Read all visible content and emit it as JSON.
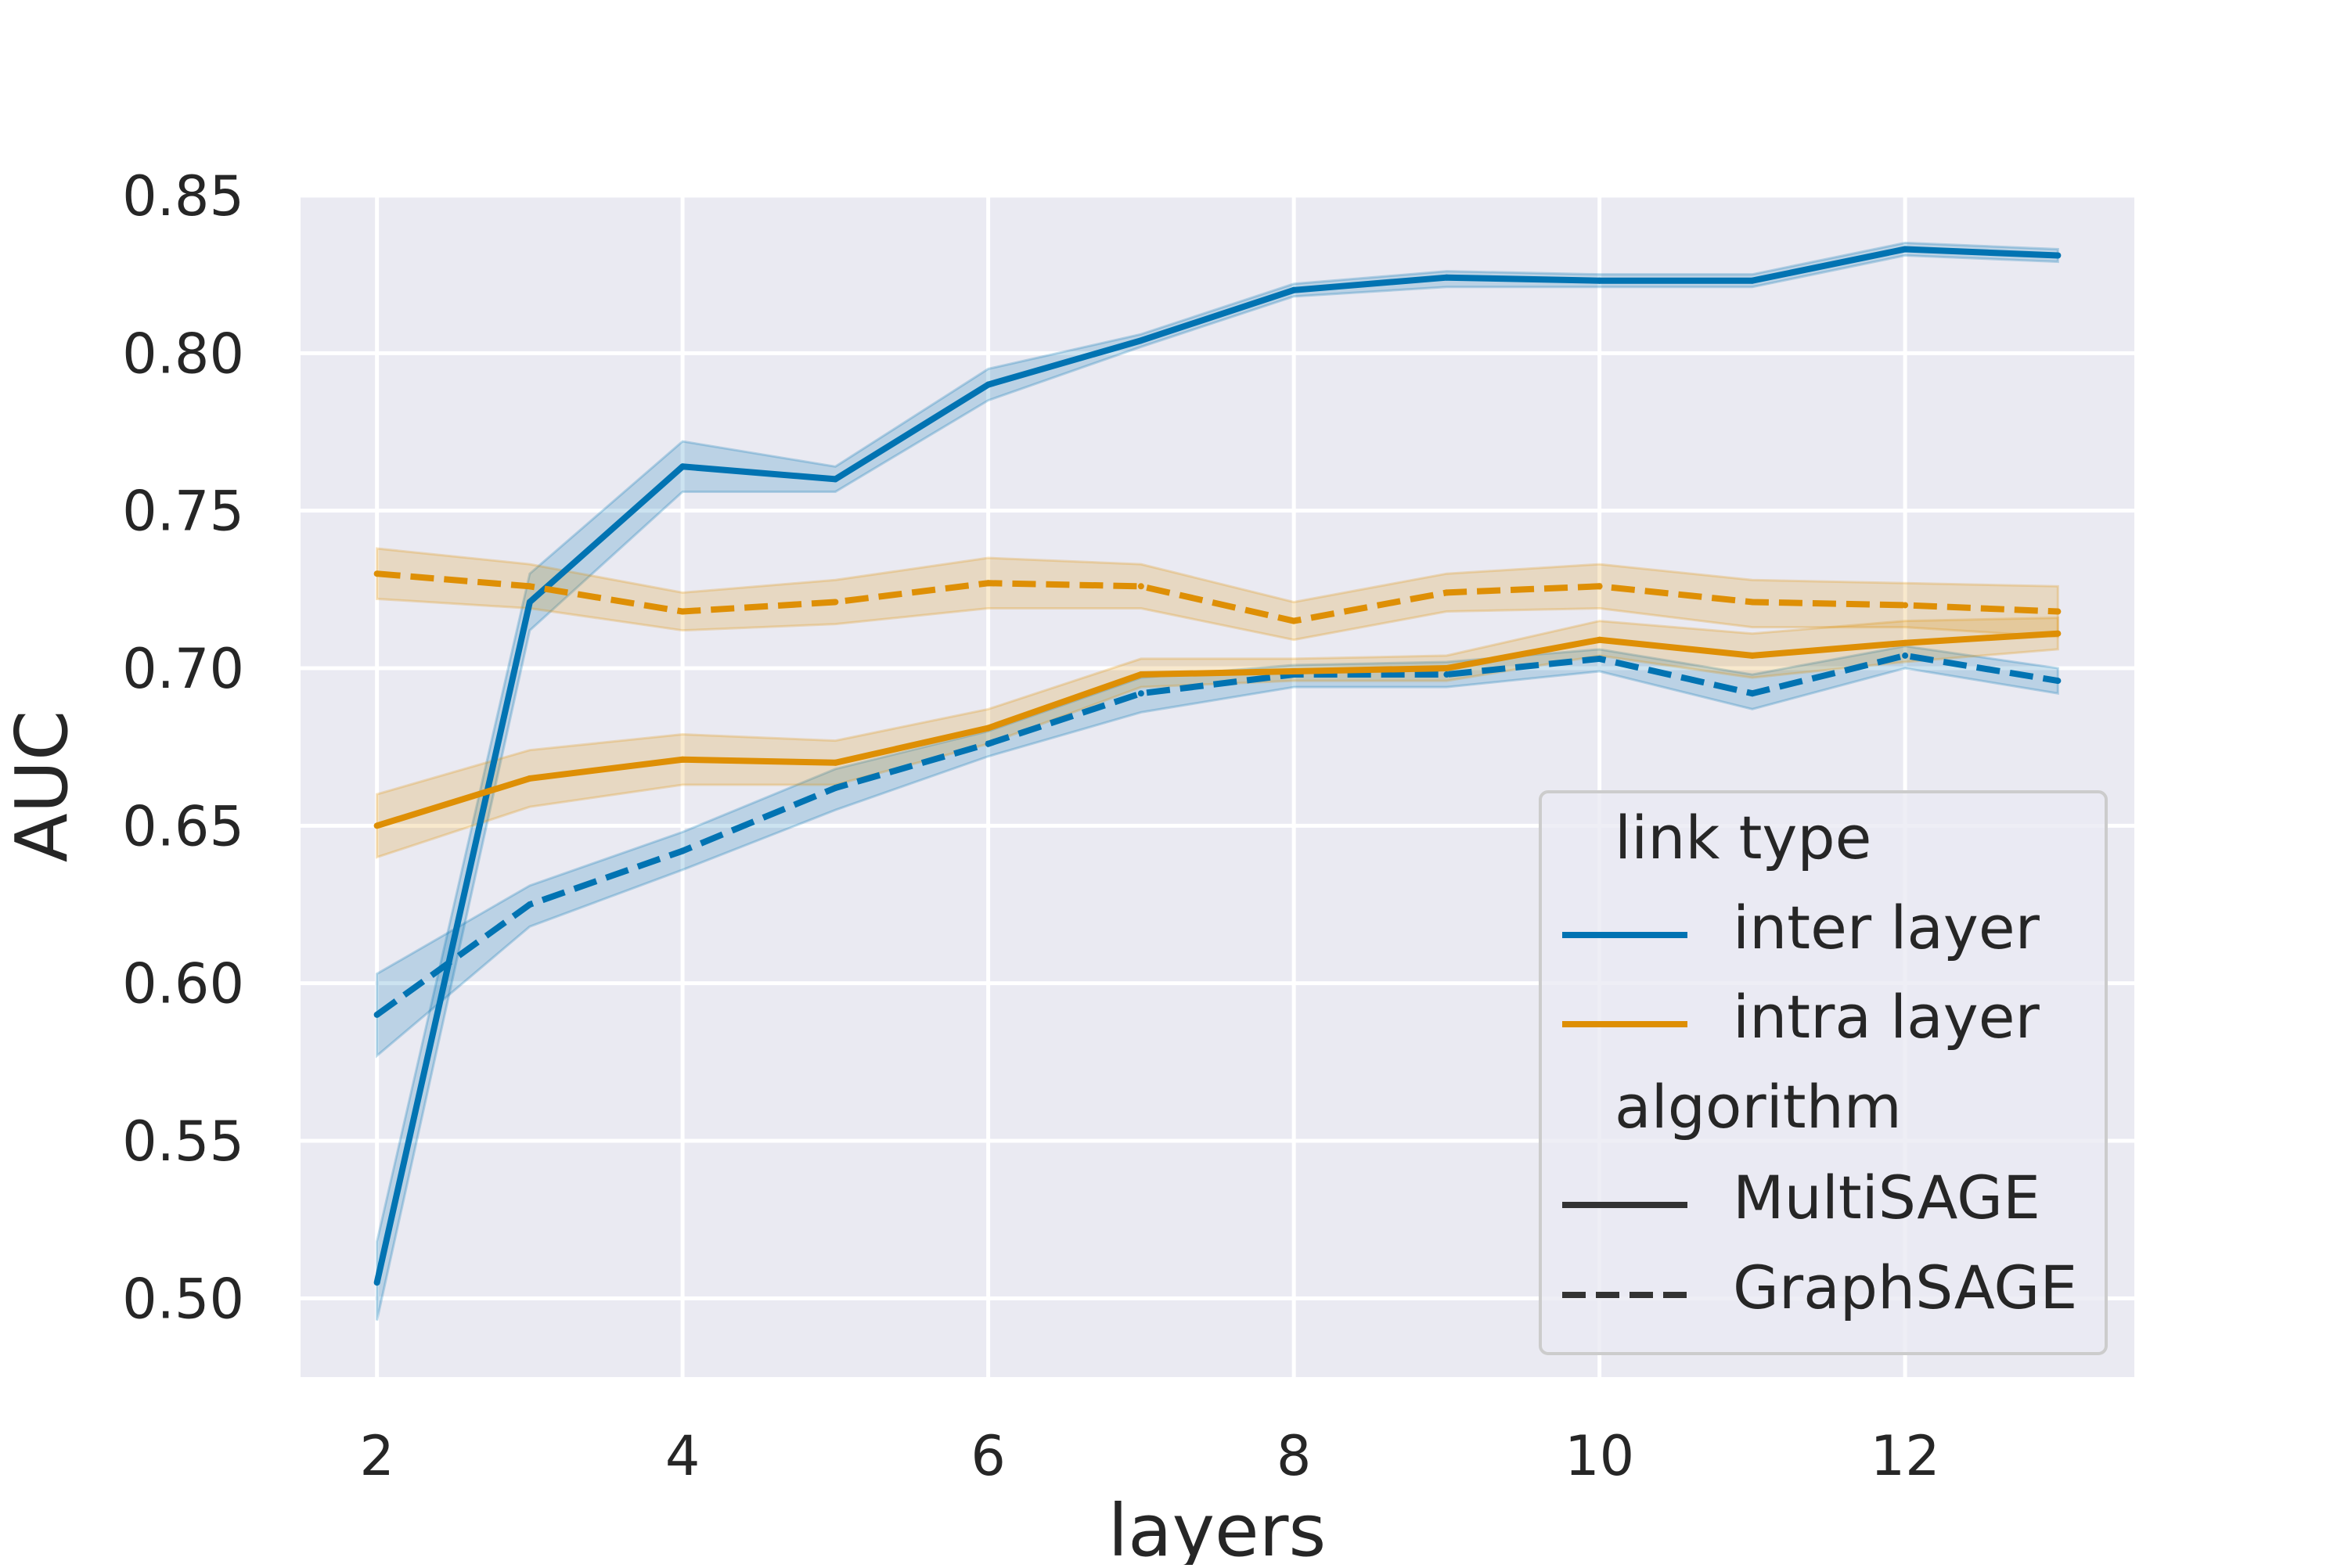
{
  "chart_data": {
    "type": "line",
    "title": "",
    "xlabel": "layers",
    "ylabel": "AUC",
    "x": [
      2,
      3,
      4,
      5,
      6,
      7,
      8,
      9,
      10,
      11,
      12,
      13
    ],
    "xlim": [
      1.5,
      13.5
    ],
    "ylim": [
      0.475,
      0.85
    ],
    "x_ticks": [
      2,
      4,
      6,
      8,
      10,
      12
    ],
    "x_tick_labels": [
      "2",
      "4",
      "6",
      "8",
      "10",
      "12"
    ],
    "y_ticks": [
      0.5,
      0.55,
      0.6,
      0.65,
      0.7,
      0.75,
      0.8,
      0.85
    ],
    "y_tick_labels": [
      "0.50",
      "0.55",
      "0.60",
      "0.65",
      "0.70",
      "0.75",
      "0.80",
      "0.85"
    ],
    "grid": true,
    "legend_position": "lower-right",
    "colors": {
      "inter_layer": "#0173b2",
      "intra_layer": "#de8f05",
      "legend_style_line": "#333333",
      "background": "#eaeaf2",
      "grid": "#ffffff"
    },
    "series": [
      {
        "link_type": "inter layer",
        "algorithm": "MultiSAGE",
        "color": "#0173b2",
        "dash": "solid",
        "values": [
          0.505,
          0.721,
          0.764,
          0.76,
          0.79,
          0.804,
          0.82,
          0.824,
          0.823,
          0.823,
          0.833,
          0.831
        ],
        "ci_lower": [
          0.493,
          0.712,
          0.756,
          0.756,
          0.785,
          0.802,
          0.818,
          0.821,
          0.821,
          0.821,
          0.831,
          0.829
        ],
        "ci_upper": [
          0.518,
          0.73,
          0.772,
          0.764,
          0.795,
          0.806,
          0.822,
          0.826,
          0.825,
          0.825,
          0.835,
          0.833
        ]
      },
      {
        "link_type": "inter layer",
        "algorithm": "GraphSAGE",
        "color": "#0173b2",
        "dash": "dashed",
        "values": [
          0.59,
          0.625,
          0.642,
          0.662,
          0.676,
          0.692,
          0.698,
          0.698,
          0.703,
          0.692,
          0.704,
          0.696
        ],
        "ci_lower": [
          0.577,
          0.618,
          0.636,
          0.655,
          0.672,
          0.686,
          0.694,
          0.694,
          0.699,
          0.687,
          0.7,
          0.692
        ],
        "ci_upper": [
          0.603,
          0.631,
          0.648,
          0.668,
          0.68,
          0.697,
          0.701,
          0.702,
          0.706,
          0.698,
          0.707,
          0.7
        ]
      },
      {
        "link_type": "intra layer",
        "algorithm": "MultiSAGE",
        "color": "#de8f05",
        "dash": "solid",
        "values": [
          0.65,
          0.665,
          0.671,
          0.67,
          0.681,
          0.698,
          0.699,
          0.7,
          0.709,
          0.704,
          0.708,
          0.711
        ],
        "ci_lower": [
          0.64,
          0.656,
          0.663,
          0.663,
          0.676,
          0.694,
          0.696,
          0.696,
          0.704,
          0.697,
          0.702,
          0.706
        ],
        "ci_upper": [
          0.66,
          0.674,
          0.679,
          0.677,
          0.687,
          0.703,
          0.703,
          0.704,
          0.715,
          0.711,
          0.715,
          0.716
        ]
      },
      {
        "link_type": "intra layer",
        "algorithm": "GraphSAGE",
        "color": "#de8f05",
        "dash": "dashed",
        "values": [
          0.73,
          0.726,
          0.718,
          0.721,
          0.727,
          0.726,
          0.715,
          0.724,
          0.726,
          0.721,
          0.72,
          0.718
        ],
        "ci_lower": [
          0.722,
          0.719,
          0.712,
          0.714,
          0.719,
          0.719,
          0.709,
          0.718,
          0.719,
          0.713,
          0.713,
          0.71
        ],
        "ci_upper": [
          0.738,
          0.733,
          0.724,
          0.728,
          0.735,
          0.733,
          0.721,
          0.73,
          0.733,
          0.728,
          0.727,
          0.726
        ]
      }
    ],
    "legend": {
      "hue_title": "link type",
      "hue_entries": [
        {
          "label": "inter layer",
          "color": "#0173b2"
        },
        {
          "label": "intra layer",
          "color": "#de8f05"
        }
      ],
      "style_title": "algorithm",
      "style_entries": [
        {
          "label": "MultiSAGE",
          "dash": "solid"
        },
        {
          "label": "GraphSAGE",
          "dash": "dashed"
        }
      ]
    }
  }
}
